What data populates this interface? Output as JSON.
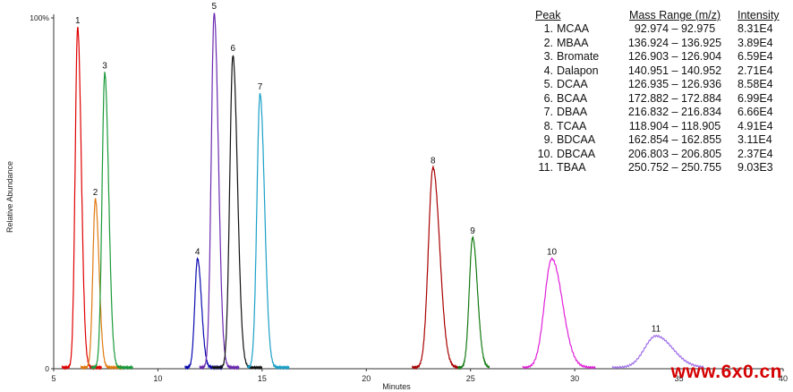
{
  "chart_data": {
    "type": "line",
    "xlabel": "Minutes",
    "ylabel": "Relative Abundance",
    "xlim": [
      5,
      40
    ],
    "ylim": [
      0,
      100
    ],
    "x_ticks": [
      5,
      10,
      15,
      20,
      25,
      30,
      35,
      40
    ],
    "y_ticks": [
      {
        "value": 0,
        "label": "0"
      },
      {
        "value": 100,
        "label": "100%"
      }
    ],
    "grid": false,
    "series": [
      {
        "name": "1",
        "color": "#e00000",
        "rt": 6.15,
        "height": 97,
        "width": 0.12,
        "from": 5.4,
        "to": 7.3
      },
      {
        "name": "2",
        "color": "#e07a10",
        "rt": 7.0,
        "height": 48,
        "width": 0.12,
        "from": 6.3,
        "to": 8.3
      },
      {
        "name": "3",
        "color": "#1a9a3a",
        "rt": 7.45,
        "height": 84,
        "width": 0.13,
        "from": 6.8,
        "to": 8.8
      },
      {
        "name": "4",
        "color": "#0a0ab0",
        "rt": 11.9,
        "height": 31,
        "width": 0.13,
        "from": 11.3,
        "to": 13.1
      },
      {
        "name": "5",
        "color": "#6a2ab0",
        "rt": 12.7,
        "height": 101,
        "width": 0.14,
        "from": 12.0,
        "to": 13.9
      },
      {
        "name": "6",
        "color": "#111111",
        "rt": 13.6,
        "height": 89,
        "width": 0.15,
        "from": 12.6,
        "to": 15.0
      },
      {
        "name": "7",
        "color": "#1aa0c8",
        "rt": 14.9,
        "height": 78,
        "width": 0.15,
        "from": 14.3,
        "to": 16.3
      },
      {
        "name": "8",
        "color": "#a80000",
        "rt": 23.2,
        "height": 57,
        "width": 0.22,
        "from": 22.2,
        "to": 24.4
      },
      {
        "name": "9",
        "color": "#127a12",
        "rt": 25.1,
        "height": 37,
        "width": 0.16,
        "from": 24.4,
        "to": 25.9
      },
      {
        "name": "10",
        "color": "#e020d8",
        "rt": 28.9,
        "height": 31,
        "width": 0.35,
        "from": 27.5,
        "to": 31.0
      },
      {
        "name": "11",
        "color": "#a070e8",
        "rt": 33.9,
        "height": 9,
        "width": 0.55,
        "from": 31.8,
        "to": 36.2
      }
    ]
  },
  "peak_table": {
    "headers": {
      "peak": "Peak",
      "mass_range": "Mass Range (m/z)",
      "intensity": "Intensity"
    },
    "rows": [
      {
        "num": "1.",
        "name": "MCAA",
        "range": "92.974 – 92.975",
        "intensity": "8.31E4"
      },
      {
        "num": "2.",
        "name": "MBAA",
        "range": "136.924 – 136.925",
        "intensity": "3.89E4"
      },
      {
        "num": "3.",
        "name": "Bromate",
        "range": "126.903 – 126.904",
        "intensity": "6.59E4"
      },
      {
        "num": "4.",
        "name": "Dalapon",
        "range": "140.951 – 140.952",
        "intensity": "2.71E4"
      },
      {
        "num": "5.",
        "name": "DCAA",
        "range": "126.935 – 126.936",
        "intensity": "8.58E4"
      },
      {
        "num": "6.",
        "name": "BCAA",
        "range": "172.882 – 172.884",
        "intensity": "6.99E4"
      },
      {
        "num": "7.",
        "name": "DBAA",
        "range": "216.832 – 216.834",
        "intensity": "6.66E4"
      },
      {
        "num": "8.",
        "name": "TCAA",
        "range": "118.904 – 118.905",
        "intensity": "4.91E4"
      },
      {
        "num": "9.",
        "name": "BDCAA",
        "range": "162.854 – 162.855",
        "intensity": "3.11E4"
      },
      {
        "num": "10.",
        "name": "DBCAA",
        "range": "206.803 – 206.805",
        "intensity": "2.37E4"
      },
      {
        "num": "11.",
        "name": "TBAA",
        "range": "250.752 – 250.755",
        "intensity": "9.03E3"
      }
    ]
  },
  "watermark": "www.6x0.cn"
}
